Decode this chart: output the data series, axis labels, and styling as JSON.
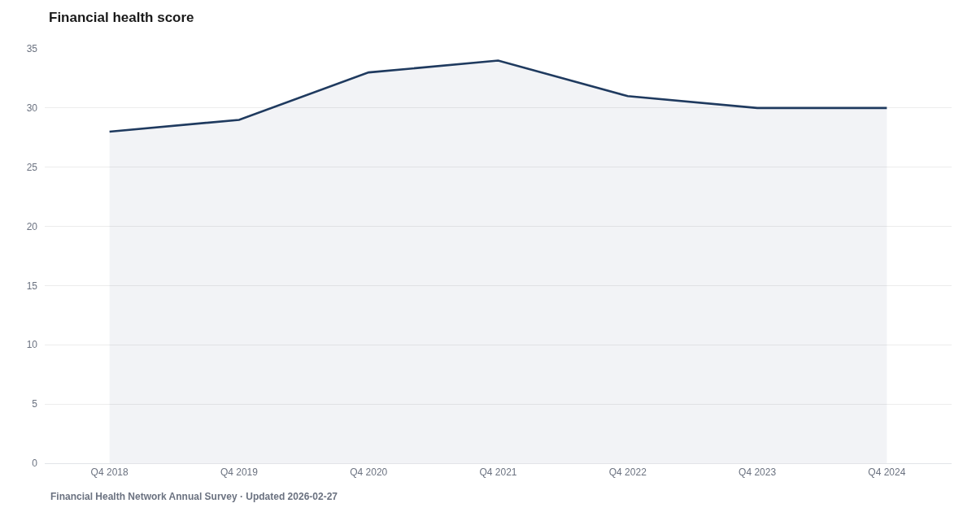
{
  "chart_data": {
    "type": "area",
    "title": "Financial health score",
    "categories": [
      "Q4 2018",
      "Q4 2019",
      "Q4 2020",
      "Q4 2021",
      "Q4 2022",
      "Q4 2023",
      "Q4 2024"
    ],
    "series": [
      {
        "color": "#1f3a5f",
        "values": [
          28,
          29,
          33,
          34,
          31,
          30,
          30
        ]
      }
    ],
    "ylim": [
      0,
      35
    ],
    "yticks": [
      0,
      5,
      10,
      15,
      20,
      25,
      30,
      35
    ],
    "grid": "y",
    "marker": "none",
    "line_style": "solid",
    "annotations": [
      "Financial Health Network Annual Survey · Updated 2026-02-27"
    ]
  }
}
